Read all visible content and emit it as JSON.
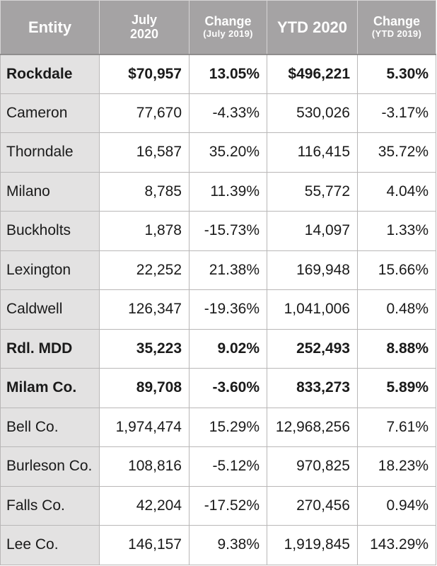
{
  "header": {
    "entity": "Entity",
    "july_line1": "July",
    "july_line2": "2020",
    "change1_line1": "Change",
    "change1_line2": "(July 2019)",
    "ytd": "YTD 2020",
    "change2_line1": "Change",
    "change2_line2": "(YTD 2019)"
  },
  "rows": [
    {
      "entity": "Rockdale",
      "july": "$70,957",
      "change_july": "13.05%",
      "ytd": "$496,221",
      "change_ytd": "5.30%",
      "bold": true
    },
    {
      "entity": "Cameron",
      "july": "77,670",
      "change_july": "-4.33%",
      "ytd": "530,026",
      "change_ytd": "-3.17%",
      "bold": false
    },
    {
      "entity": "Thorndale",
      "july": "16,587",
      "change_july": "35.20%",
      "ytd": "116,415",
      "change_ytd": "35.72%",
      "bold": false
    },
    {
      "entity": "Milano",
      "july": "8,785",
      "change_july": "11.39%",
      "ytd": "55,772",
      "change_ytd": "4.04%",
      "bold": false
    },
    {
      "entity": "Buckholts",
      "july": "1,878",
      "change_july": "-15.73%",
      "ytd": "14,097",
      "change_ytd": "1.33%",
      "bold": false
    },
    {
      "entity": "Lexington",
      "july": "22,252",
      "change_july": "21.38%",
      "ytd": "169,948",
      "change_ytd": "15.66%",
      "bold": false
    },
    {
      "entity": "Caldwell",
      "july": "126,347",
      "change_july": "-19.36%",
      "ytd": "1,041,006",
      "change_ytd": "0.48%",
      "bold": false
    },
    {
      "entity": "Rdl. MDD",
      "july": "35,223",
      "change_july": "9.02%",
      "ytd": "252,493",
      "change_ytd": "8.88%",
      "bold": true
    },
    {
      "entity": "Milam Co.",
      "july": "89,708",
      "change_july": "-3.60%",
      "ytd": "833,273",
      "change_ytd": "5.89%",
      "bold": true
    },
    {
      "entity": "Bell Co.",
      "july": "1,974,474",
      "change_july": "15.29%",
      "ytd": "12,968,256",
      "change_ytd": "7.61%",
      "bold": false
    },
    {
      "entity": "Burleson Co.",
      "july": "108,816",
      "change_july": "-5.12%",
      "ytd": "970,825",
      "change_ytd": "18.23%",
      "bold": false
    },
    {
      "entity": "Falls Co.",
      "july": "42,204",
      "change_july": "-17.52%",
      "ytd": "270,456",
      "change_ytd": "0.94%",
      "bold": false
    },
    {
      "entity": "Lee Co.",
      "july": "146,157",
      "change_july": "9.38%",
      "ytd": "1,919,845",
      "change_ytd": "143.29%",
      "bold": false
    }
  ],
  "colors": {
    "header_bg": "#a5a3a4",
    "name_col_bg": "#e3e2e2",
    "grid_line": "#b9b7b7",
    "text": "#1a1a1a"
  }
}
